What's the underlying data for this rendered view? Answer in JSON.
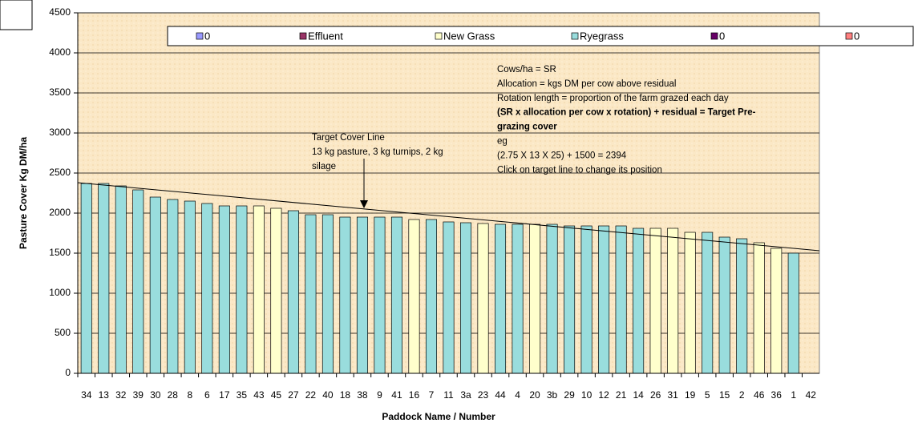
{
  "chart_data": {
    "type": "bar",
    "stacked": true,
    "x_label": "Paddock Name / Number",
    "y_label": "Pasture Cover Kg DM/ha",
    "categories": [
      "34",
      "13",
      "32",
      "39",
      "30",
      "28",
      "8",
      "6",
      "17",
      "35",
      "43",
      "45",
      "27",
      "22",
      "40",
      "18",
      "38",
      "9",
      "41",
      "16",
      "7",
      "11",
      "3a",
      "23",
      "44",
      "4",
      "20",
      "3b",
      "29",
      "10",
      "12",
      "21",
      "14",
      "26",
      "31",
      "19",
      "5",
      "15",
      "2",
      "46",
      "36",
      "1",
      "42"
    ],
    "series": [
      {
        "name": "0",
        "color": "#9999ff",
        "values": [
          null,
          null,
          null,
          null,
          null,
          null,
          null,
          null,
          null,
          null,
          null,
          null,
          null,
          null,
          null,
          null,
          null,
          null,
          null,
          null,
          null,
          null,
          null,
          null,
          null,
          null,
          null,
          null,
          null,
          null,
          null,
          null,
          null,
          null,
          null,
          null,
          null,
          null,
          null,
          null,
          null,
          null,
          null
        ]
      },
      {
        "name": "Effluent",
        "color": "#993366",
        "values": [
          null,
          null,
          null,
          null,
          null,
          null,
          null,
          null,
          null,
          null,
          null,
          null,
          null,
          null,
          null,
          null,
          null,
          null,
          null,
          null,
          null,
          null,
          null,
          null,
          null,
          null,
          null,
          null,
          null,
          null,
          null,
          null,
          null,
          null,
          null,
          null,
          null,
          null,
          null,
          null,
          null,
          null,
          null
        ]
      },
      {
        "name": "New Grass",
        "color": "#ffffcc",
        "values": [
          null,
          null,
          null,
          null,
          null,
          null,
          null,
          null,
          null,
          null,
          2090,
          2060,
          null,
          null,
          null,
          null,
          null,
          null,
          null,
          1920,
          null,
          null,
          null,
          1870,
          null,
          null,
          1860,
          null,
          null,
          null,
          null,
          null,
          null,
          1810,
          1810,
          1760,
          null,
          null,
          null,
          1630,
          1560,
          null,
          null
        ]
      },
      {
        "name": "Ryegrass",
        "color": "#99dddd",
        "values": [
          2370,
          2370,
          2340,
          2290,
          2200,
          2170,
          2150,
          2120,
          2090,
          2090,
          null,
          null,
          2030,
          1980,
          1980,
          1950,
          1950,
          1950,
          1950,
          null,
          1920,
          1890,
          1880,
          null,
          1860,
          1860,
          null,
          1860,
          1840,
          1840,
          1840,
          1840,
          1810,
          null,
          null,
          null,
          1760,
          1700,
          1680,
          null,
          null,
          1500,
          null
        ]
      },
      {
        "name": "0",
        "color": "#660066",
        "values": [
          null,
          null,
          null,
          null,
          null,
          null,
          null,
          null,
          null,
          null,
          null,
          null,
          null,
          null,
          null,
          null,
          null,
          null,
          null,
          null,
          null,
          null,
          null,
          null,
          null,
          null,
          null,
          null,
          null,
          null,
          null,
          null,
          null,
          null,
          null,
          null,
          null,
          null,
          null,
          null,
          null,
          null,
          null
        ]
      },
      {
        "name": "0",
        "color": "#ff8080",
        "values": [
          null,
          null,
          null,
          null,
          null,
          null,
          null,
          null,
          null,
          null,
          null,
          null,
          null,
          null,
          null,
          null,
          null,
          null,
          null,
          null,
          null,
          null,
          null,
          null,
          null,
          null,
          null,
          null,
          null,
          null,
          null,
          null,
          null,
          null,
          null,
          null,
          null,
          null,
          null,
          null,
          null,
          null,
          null
        ]
      }
    ],
    "target_line": [
      2380,
      1530
    ],
    "ylim": [
      0,
      4500
    ],
    "yticks": [
      0,
      500,
      1000,
      1500,
      2000,
      2500,
      3000,
      3500,
      4000,
      4500
    ],
    "grid": true,
    "notes_left": [
      {
        "text": "Target Cover Line",
        "bold": false
      },
      {
        "text": "13 kg pasture, 3 kg turnips, 2 kg",
        "bold": false
      },
      {
        "text": "silage",
        "bold": false
      }
    ],
    "notes_right": [
      {
        "text": "Cows/ha = SR",
        "bold": false
      },
      {
        "text": "Allocation = kgs DM per cow above residual",
        "bold": false
      },
      {
        "text": "Rotation length = proportion of the farm grazed each day",
        "bold": false
      },
      {
        "text": "(SR x allocation per cow x rotation) + residual = Target Pre-",
        "bold": true
      },
      {
        "text": "grazing cover",
        "bold": true
      },
      {
        "text": "eg",
        "bold": false
      },
      {
        "text": "(2.75 X 13 X 25) + 1500 = 2394",
        "bold": false
      },
      {
        "text": "Click on target line to change its position",
        "bold": false
      }
    ]
  }
}
